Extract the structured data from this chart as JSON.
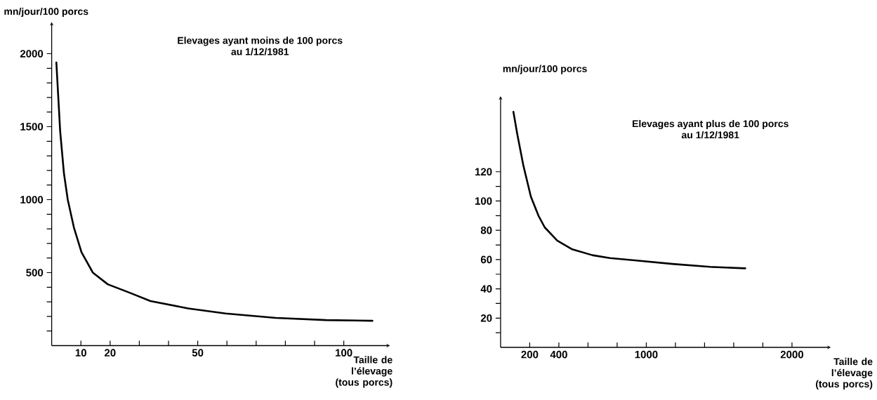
{
  "chart_data": [
    {
      "type": "line",
      "title": "Elevages ayant moins de 100 porcs",
      "subtitle": "au 1/12/1981",
      "xlabel": "Taille de l’élevage (tous porcs)",
      "ylabel": "mn/jour/100 porcs",
      "color": "#000000",
      "x": [
        1.6,
        2.9,
        4.2,
        5.5,
        7.6,
        10.2,
        14.1,
        19.2,
        27,
        33.8,
        46.7,
        59.6,
        76.7,
        93.9,
        109.8
      ],
      "values": [
        1940,
        1470,
        1180,
        1000,
        810,
        640,
        500,
        420,
        360,
        305,
        255,
        220,
        190,
        175,
        170
      ],
      "xlim": [
        0,
        115
      ],
      "ylim": [
        0,
        2200
      ],
      "xticks": [
        10,
        20,
        {
          "value": 30,
          "label": null
        },
        {
          "value": 40,
          "label": null
        },
        50,
        {
          "value": 60,
          "label": null
        },
        {
          "value": 70,
          "label": null
        },
        {
          "value": 80,
          "label": null
        },
        {
          "value": 90,
          "label": null
        },
        100
      ],
      "yticks": [
        {
          "value": 100,
          "label": null
        },
        {
          "value": 200,
          "label": null
        },
        {
          "value": 300,
          "label": null
        },
        {
          "value": 400,
          "label": null
        },
        500,
        {
          "value": 600,
          "label": null
        },
        {
          "value": 700,
          "label": null
        },
        {
          "value": 800,
          "label": null
        },
        {
          "value": 900,
          "label": null
        },
        1000,
        {
          "value": 1100,
          "label": null
        },
        {
          "value": 1200,
          "label": null
        },
        {
          "value": 1300,
          "label": null
        },
        {
          "value": 1400,
          "label": null
        },
        1500,
        {
          "value": 1600,
          "label": null
        },
        {
          "value": 1700,
          "label": null
        },
        {
          "value": 1800,
          "label": null
        },
        {
          "value": 1900,
          "label": null
        },
        2000
      ]
    },
    {
      "type": "line",
      "title": "Elevages ayant plus de 100 porcs",
      "subtitle": "au 1/12/1981",
      "xlabel": "Taille de l’élevage (tous porcs)",
      "ylabel": "mn/jour/100 porcs",
      "color": "#000000",
      "x": [
        88,
        114,
        157,
        208,
        260,
        303,
        389,
        492,
        630,
        750,
        922,
        1180,
        1438,
        1679
      ],
      "values": [
        161,
        146,
        124,
        103,
        90,
        82,
        73,
        67,
        63,
        61,
        59.5,
        57,
        55,
        54
      ],
      "xlim": [
        0,
        2250
      ],
      "ylim": [
        0,
        170
      ],
      "xticks": [
        200,
        400,
        {
          "value": 600,
          "label": null
        },
        {
          "value": 800,
          "label": null
        },
        1000,
        {
          "value": 1200,
          "label": null
        },
        {
          "value": 1400,
          "label": null
        },
        {
          "value": 1600,
          "label": null
        },
        {
          "value": 1800,
          "label": null
        },
        2000
      ],
      "yticks": [
        {
          "value": 10,
          "label": null
        },
        20,
        {
          "value": 30,
          "label": null
        },
        40,
        {
          "value": 50,
          "label": null
        },
        60,
        {
          "value": 70,
          "label": null
        },
        80,
        {
          "value": 90,
          "label": null
        },
        100,
        {
          "value": 110,
          "label": null
        },
        120
      ]
    }
  ]
}
